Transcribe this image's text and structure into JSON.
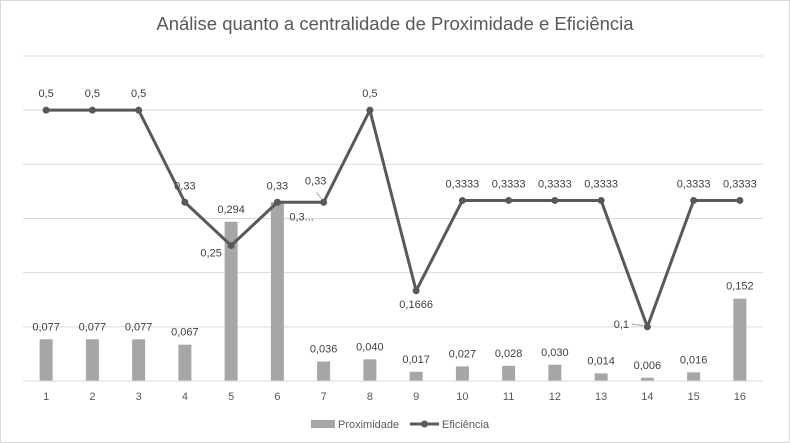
{
  "chart_data": {
    "type": "bar+line",
    "title": "Análise quanto a centralidade de Proximidade e Eficiência",
    "categories": [
      "1",
      "2",
      "3",
      "4",
      "5",
      "6",
      "7",
      "8",
      "9",
      "10",
      "11",
      "12",
      "13",
      "14",
      "15",
      "16"
    ],
    "series": [
      {
        "name": "Proximidade",
        "type": "bar",
        "color": "#a6a6a6",
        "values": [
          0.077,
          0.077,
          0.077,
          0.067,
          0.294,
          0.33,
          0.036,
          0.04,
          0.017,
          0.027,
          0.028,
          0.03,
          0.014,
          0.006,
          0.016,
          0.152
        ],
        "labels": [
          "0,077",
          "0,077",
          "0,077",
          "0,067",
          "0,294",
          "0,3...",
          "0,036",
          "0,040",
          "0,017",
          "0,027",
          "0,028",
          "0,030",
          "0,014",
          "0,006",
          "0,016",
          "0,152"
        ]
      },
      {
        "name": "Eficiência",
        "type": "line",
        "color": "#595959",
        "values": [
          0.5,
          0.5,
          0.5,
          0.33,
          0.25,
          0.33,
          0.33,
          0.5,
          0.1666,
          0.3333,
          0.3333,
          0.3333,
          0.3333,
          0.1,
          0.3333,
          0.3333
        ],
        "labels": [
          "0,5",
          "0,5",
          "0,5",
          "0,33",
          "0,25",
          "0,33",
          "0,33",
          "0,5",
          "0,1666",
          "0,3333",
          "0,3333",
          "0,3333",
          "0,3333",
          "0,1",
          "0,3333",
          "0,3333"
        ]
      }
    ],
    "ylim": [
      0,
      0.6
    ],
    "grid": true,
    "legend_position": "bottom"
  }
}
